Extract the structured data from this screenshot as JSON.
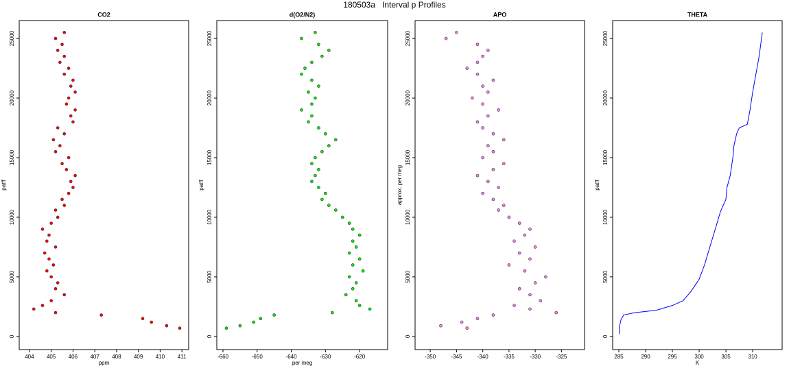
{
  "title": "180503a   Interval p Profiles",
  "chart_data": [
    {
      "type": "scatter",
      "title": "CO2",
      "x_label": "ppm",
      "y_label": "patff",
      "color": "#ff0000",
      "xlim": [
        403.53,
        411.31
      ],
      "xticks": [
        404,
        405,
        406,
        407,
        408,
        409,
        410,
        411
      ],
      "ylim": [
        -1100,
        26500
      ],
      "yticks": [
        0,
        5000,
        10000,
        15000,
        20000,
        25000
      ],
      "x": [
        410.9,
        410.3,
        409.6,
        409.2,
        407.3,
        405.2,
        404.2,
        404.6,
        405.0,
        405.6,
        405.2,
        405.3,
        405.0,
        404.8,
        405.1,
        404.9,
        404.7,
        405.2,
        404.8,
        404.9,
        404.6,
        405.0,
        405.3,
        405.2,
        405.6,
        405.5,
        405.8,
        406.0,
        405.9,
        406.1,
        405.7,
        405.5,
        405.8,
        405.2,
        405.4,
        405.1,
        405.6,
        405.3,
        406.0,
        405.9,
        406.1,
        405.7,
        405.8,
        406.1,
        405.9,
        406.0,
        405.6,
        405.8,
        405.4,
        405.6,
        405.3,
        405.5,
        405.2,
        405.6
      ],
      "values": [
        700,
        900,
        1200,
        1500,
        1800,
        2000,
        2300,
        2600,
        3000,
        3500,
        4000,
        4500,
        5000,
        5500,
        6000,
        6500,
        7000,
        7500,
        8000,
        8500,
        9000,
        9500,
        10000,
        10600,
        11000,
        11500,
        12000,
        12500,
        13000,
        13500,
        14000,
        14500,
        15000,
        15500,
        16000,
        16500,
        17000,
        17500,
        18000,
        18500,
        19000,
        19500,
        20000,
        20500,
        21000,
        21500,
        22000,
        22500,
        23000,
        23500,
        24000,
        24500,
        25000,
        25500
      ]
    },
    {
      "type": "scatter",
      "title": "d(O2/N2)",
      "x_label": "per meg",
      "y_label": "patff",
      "color": "#00ee00",
      "xlim": [
        -661.8,
        -611.8
      ],
      "xticks": [
        -660,
        -650,
        -640,
        -630,
        -620
      ],
      "ylim": [
        -1100,
        26500
      ],
      "yticks": [
        0,
        5000,
        10000,
        15000,
        20000,
        25000
      ],
      "x": [
        -659,
        -655,
        -651,
        -649,
        -645,
        -628,
        -617,
        -620,
        -621,
        -624,
        -622,
        -621,
        -623,
        -619,
        -622,
        -620,
        -623,
        -621,
        -622,
        -620,
        -622,
        -623,
        -625,
        -627,
        -629,
        -631,
        -630,
        -632,
        -634,
        -633,
        -632,
        -634,
        -633,
        -631,
        -629,
        -627,
        -630,
        -632,
        -635,
        -634,
        -637,
        -634,
        -633,
        -635,
        -632,
        -634,
        -637,
        -636,
        -634,
        -631,
        -629,
        -632,
        -637,
        -633
      ],
      "values": [
        700,
        900,
        1200,
        1500,
        1800,
        2000,
        2300,
        2600,
        3000,
        3500,
        4000,
        4500,
        5000,
        5500,
        6000,
        6500,
        7000,
        7500,
        8000,
        8500,
        9000,
        9500,
        10000,
        10600,
        11000,
        11500,
        12000,
        12500,
        13000,
        13500,
        14000,
        14500,
        15000,
        15500,
        16000,
        16500,
        17000,
        17500,
        18000,
        18500,
        19000,
        19500,
        20000,
        20500,
        21000,
        21500,
        22000,
        22500,
        23000,
        23500,
        24000,
        24500,
        25000,
        25500
      ]
    },
    {
      "type": "scatter",
      "title": "APO",
      "y_label": "approx. per meg",
      "color": "#ee82ee",
      "xlim": [
        -352.9,
        -320.6
      ],
      "xticks": [
        -350,
        -345,
        -340,
        -335,
        -330,
        -325
      ],
      "ylim": [
        -1100,
        26500
      ],
      "yticks": [
        0,
        5000,
        10000,
        15000,
        20000,
        25000
      ],
      "x": [
        -343,
        -348,
        -344,
        -341,
        -338,
        -326,
        -331,
        -334,
        -329,
        -331,
        -333,
        -330,
        -328,
        -332,
        -335,
        -331,
        -333,
        -330,
        -334,
        -332,
        -331,
        -333,
        -335,
        -337,
        -336,
        -338,
        -340,
        -337,
        -339,
        -341,
        -338,
        -336,
        -340,
        -338,
        -339,
        -336,
        -338,
        -340,
        -341,
        -339,
        -337,
        -340,
        -342,
        -339,
        -340,
        -338,
        -341,
        -343,
        -341,
        -340,
        -339,
        -341,
        -347,
        -345
      ],
      "values": [
        700,
        900,
        1200,
        1500,
        1800,
        2000,
        2300,
        2600,
        3000,
        3500,
        4000,
        4500,
        5000,
        5500,
        6000,
        6500,
        7000,
        7500,
        8000,
        8500,
        9000,
        9500,
        10000,
        10600,
        11000,
        11500,
        12000,
        12500,
        13000,
        13500,
        14000,
        14500,
        15000,
        15500,
        16000,
        16500,
        17000,
        17500,
        18000,
        18500,
        19000,
        19500,
        20000,
        20500,
        21000,
        21500,
        22000,
        22500,
        23000,
        23500,
        24000,
        24500,
        25000,
        25500
      ]
    },
    {
      "type": "line",
      "title": "THETA",
      "x_label": "K",
      "y_label": "patff",
      "color": "#0000ff",
      "xlim": [
        283.85,
        315.5
      ],
      "xticks": [
        285,
        290,
        295,
        300,
        305,
        310
      ],
      "ylim": [
        -1100,
        26500
      ],
      "yticks": [
        0,
        5000,
        10000,
        15000,
        20000,
        25000
      ],
      "x": [
        285.1,
        285.1,
        285.4,
        285.9,
        288,
        292,
        295,
        297,
        298.5,
        300,
        301,
        302,
        303,
        304,
        305,
        305.2,
        305.8,
        306.3,
        306.5,
        307,
        307.5,
        309,
        309.5,
        310,
        310.6,
        311.2,
        311.5,
        311.8
      ],
      "values": [
        200,
        800,
        1400,
        1800,
        2000,
        2200,
        2600,
        3000,
        3800,
        4800,
        6000,
        7500,
        9000,
        10500,
        11500,
        12500,
        13500,
        15000,
        16000,
        17000,
        17500,
        17800,
        19000,
        20500,
        22000,
        23500,
        24500,
        25500
      ]
    }
  ]
}
